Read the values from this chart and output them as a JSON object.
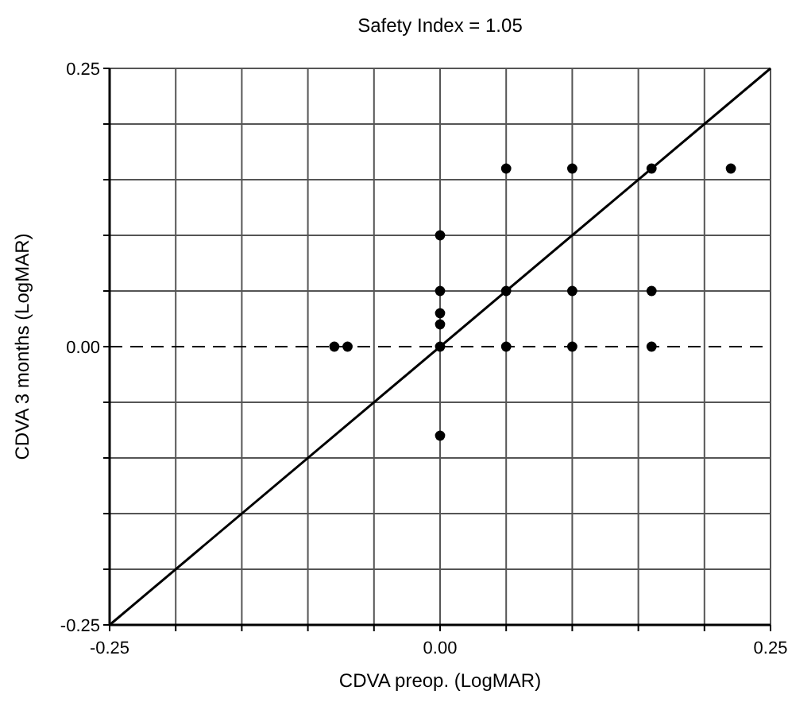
{
  "chart_data": {
    "type": "scatter",
    "title": "Safety Index = 1.05",
    "xlabel": "CDVA preop. (LogMAR)",
    "ylabel": "CDVA 3 months (LogMAR)",
    "xlim": [
      -0.25,
      0.25
    ],
    "ylim": [
      -0.25,
      0.25
    ],
    "xticks": [
      {
        "value": -0.25,
        "label": "-0.25"
      },
      {
        "value": -0.2,
        "label": null
      },
      {
        "value": -0.15,
        "label": null
      },
      {
        "value": -0.1,
        "label": null
      },
      {
        "value": -0.05,
        "label": null
      },
      {
        "value": 0,
        "label": "0.00"
      },
      {
        "value": 0.05,
        "label": null
      },
      {
        "value": 0.1,
        "label": null
      },
      {
        "value": 0.15,
        "label": null
      },
      {
        "value": 0.2,
        "label": null
      },
      {
        "value": 0.25,
        "label": "0.25"
      }
    ],
    "yticks": [
      {
        "value": -0.25,
        "label": "-0.25"
      },
      {
        "value": -0.2,
        "label": null
      },
      {
        "value": -0.15,
        "label": null
      },
      {
        "value": -0.1,
        "label": null
      },
      {
        "value": -0.05,
        "label": null
      },
      {
        "value": 0,
        "label": "0.00"
      },
      {
        "value": 0.05,
        "label": null
      },
      {
        "value": 0.1,
        "label": null
      },
      {
        "value": 0.15,
        "label": null
      },
      {
        "value": 0.2,
        "label": null
      },
      {
        "value": 0.25,
        "label": "0.25"
      }
    ],
    "grid": true,
    "ref_lines": [
      {
        "axis": "y",
        "value": 0,
        "line_style": "dashed",
        "color": "#000000"
      }
    ],
    "series": [
      {
        "color": "#000000",
        "marker": "circle",
        "x": [
          -0.08,
          -0.07,
          0,
          0,
          0,
          0,
          0,
          0,
          0.05,
          0.05,
          0.05,
          0.1,
          0.1,
          0.1,
          0.16,
          0.16,
          0.16,
          0.22
        ],
        "values": [
          0,
          0,
          0,
          0.02,
          0.03,
          0.05,
          0.1,
          -0.08,
          0,
          0.05,
          0.16,
          0,
          0.05,
          0.16,
          0,
          0.05,
          0.16,
          0.16
        ]
      },
      {
        "type": "line",
        "color": "#000000",
        "marker": "none",
        "line_style": "solid",
        "x": [
          -0.25,
          0.25
        ],
        "values": [
          -0.25,
          0.25
        ]
      }
    ]
  }
}
